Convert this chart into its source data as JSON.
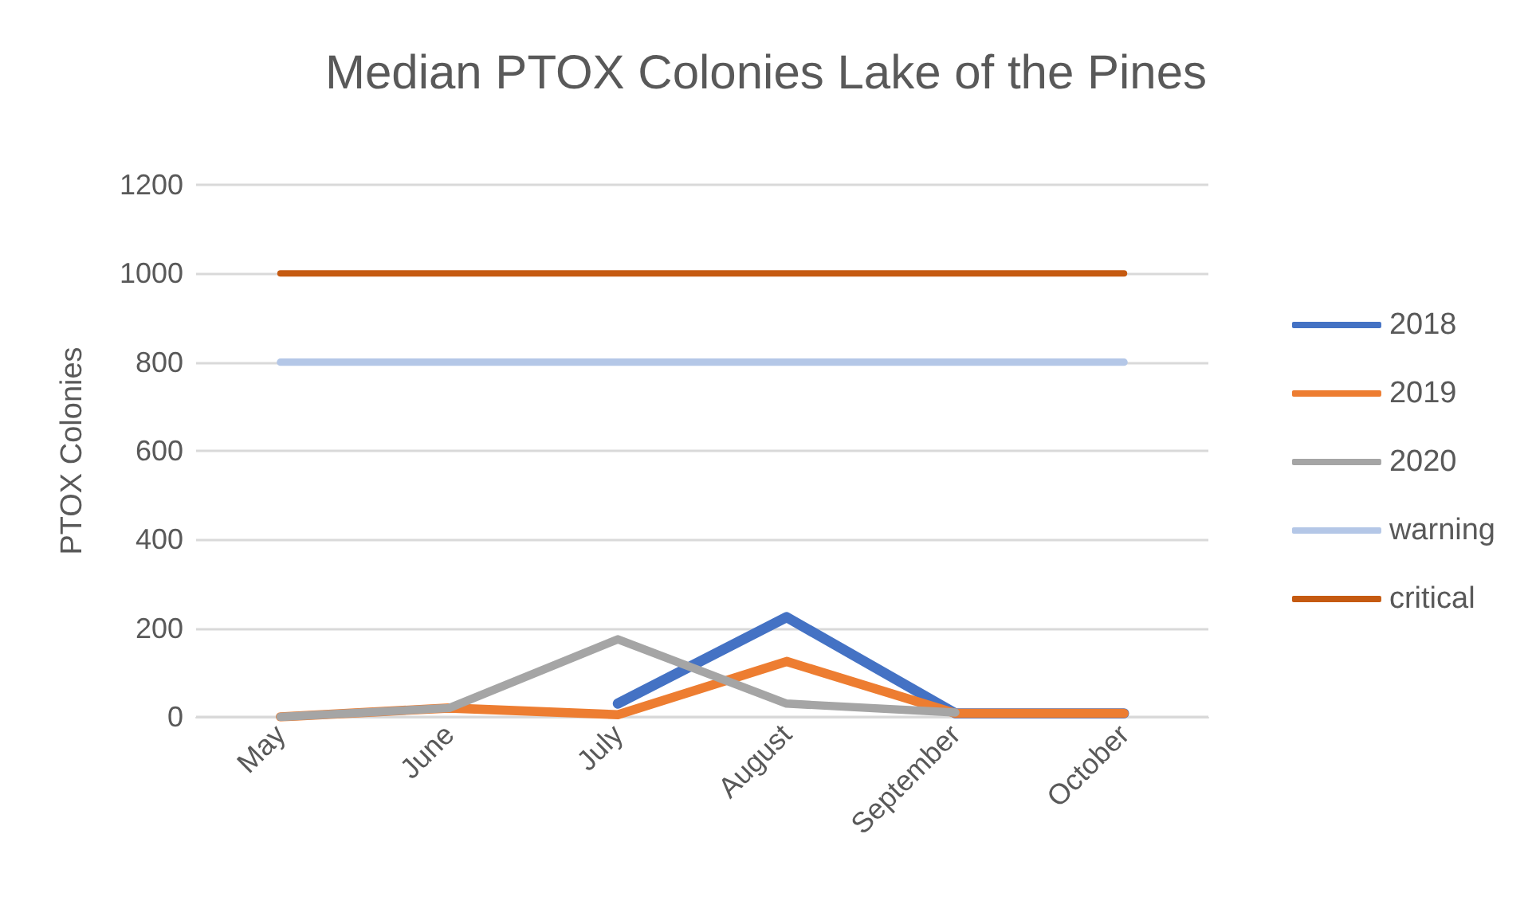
{
  "chart_data": {
    "type": "line",
    "title": "Median PTOX Colonies Lake of the Pines",
    "ylabel": "PTOX Colonies",
    "categories": [
      "May",
      "June",
      "July",
      "August",
      "September",
      "October"
    ],
    "series": [
      {
        "name": "2018",
        "color": "#4472c4",
        "values": [
          null,
          null,
          30,
          225,
          8,
          8
        ]
      },
      {
        "name": "2019",
        "color": "#ed7d31",
        "values": [
          0,
          20,
          5,
          125,
          8,
          8
        ]
      },
      {
        "name": "2020",
        "color": "#a5a5a5",
        "values": [
          0,
          20,
          175,
          30,
          10,
          null
        ]
      },
      {
        "name": "warning",
        "color": "#b4c7e7",
        "values": [
          800,
          800,
          800,
          800,
          800,
          800
        ]
      },
      {
        "name": "critical",
        "color": "#c55a11",
        "values": [
          1000,
          1000,
          1000,
          1000,
          1000,
          1000
        ]
      }
    ],
    "ylim": [
      0,
      1200
    ],
    "yticks": [
      0,
      200,
      400,
      600,
      800,
      1000,
      1200
    ],
    "grid": "y",
    "legend": "right",
    "marker": "none",
    "line_style": "solid"
  }
}
